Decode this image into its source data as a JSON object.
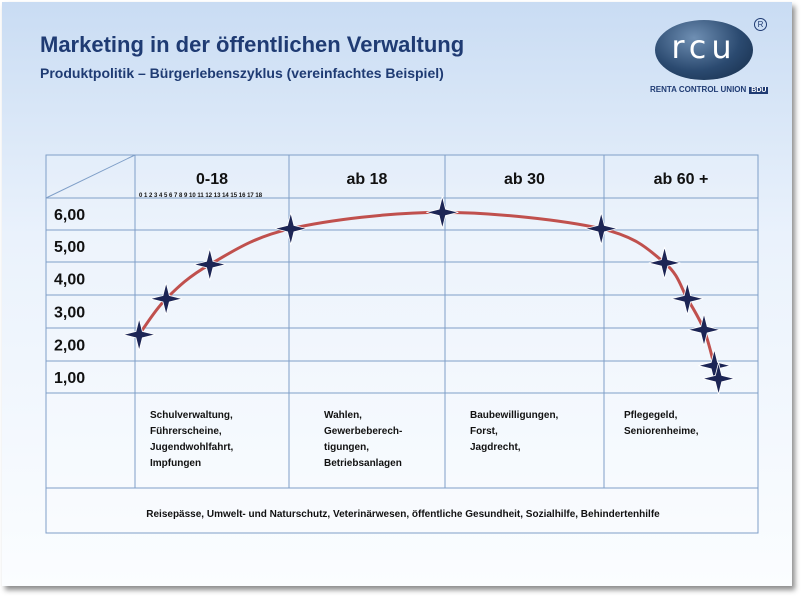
{
  "header": {
    "title": "Marketing in der öffentlichen Verwaltung",
    "subtitle": "Produktpolitik – Bürgerlebenszyklus (vereinfachtes Beispiel)"
  },
  "logo": {
    "letters": "rcu",
    "registered": "R",
    "tagline": "RENTA CONTROL UNION",
    "badge": "BDU"
  },
  "colors": {
    "grid": "#7f9fc8",
    "curve": "#c0504d",
    "marker": "#1c2555",
    "text": "#111111",
    "title": "#1f3b73"
  },
  "chart_data": {
    "type": "line",
    "y_ticks": [
      "6,00",
      "5,00",
      "4,00",
      "3,00",
      "2,00",
      "1,00"
    ],
    "ylim": [
      0.5,
      6.5
    ],
    "age_ticks": "0 1 2 3 4 5 6 7 8 9 10 11 12 13 14 15 16 17 18",
    "columns": [
      {
        "label": "0-18",
        "services": [
          "Schulverwaltung,",
          "Führerscheine,",
          "Jugendwohlfahrt,",
          "Impfungen"
        ]
      },
      {
        "label": "ab 18",
        "services": [
          "Wahlen,",
          "Gewerbeberech-",
          "tigungen,",
          "Betriebsanlagen"
        ]
      },
      {
        "label": "ab 30",
        "services": [
          "Baubewilligungen,",
          "Forst,",
          "Jagdrecht,"
        ]
      },
      {
        "label": "ab 60 +",
        "services": [
          "Pflegegeld,",
          "Seniorenheime,"
        ]
      }
    ],
    "curve_points": [
      {
        "x": 0.04,
        "y": 2.3
      },
      {
        "x": 0.3,
        "y": 3.4
      },
      {
        "x": 0.72,
        "y": 4.45
      },
      {
        "x": 1.5,
        "y": 5.55
      },
      {
        "x": 2.96,
        "y": 6.05
      },
      {
        "x": 4.49,
        "y": 5.55
      },
      {
        "x": 5.1,
        "y": 4.5
      },
      {
        "x": 5.32,
        "y": 3.4
      },
      {
        "x": 5.48,
        "y": 2.45
      },
      {
        "x": 5.58,
        "y": 1.35
      },
      {
        "x": 5.62,
        "y": 0.95
      }
    ],
    "xlabel": "",
    "ylabel": ""
  },
  "footer": {
    "text": "Reisepässe,  Umwelt- und Naturschutz, Veterinärwesen, öffentliche Gesundheit, Sozialhilfe, Behindertenhilfe"
  }
}
